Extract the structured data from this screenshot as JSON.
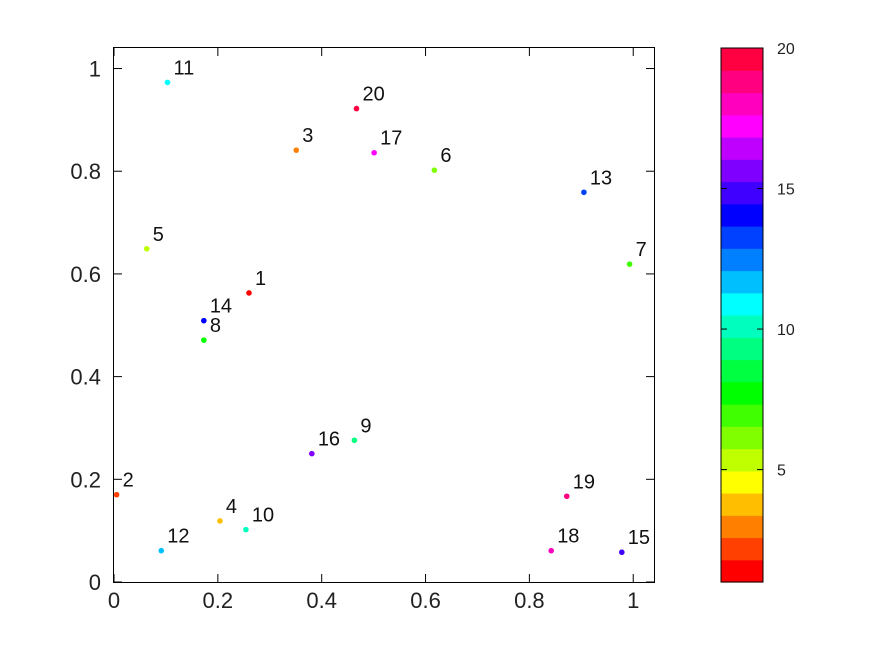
{
  "chart_data": {
    "type": "scatter",
    "title": "",
    "xlabel": "",
    "ylabel": "",
    "xlim": [
      0,
      1.04
    ],
    "ylim": [
      0,
      1.04
    ],
    "x_ticks": [
      0,
      0.2,
      0.4,
      0.6,
      0.8,
      1
    ],
    "x_tick_labels": [
      "0",
      "0.2",
      "0.4",
      "0.6",
      "0.8",
      "1"
    ],
    "y_ticks": [
      0,
      0.2,
      0.4,
      0.6,
      0.8,
      1
    ],
    "y_tick_labels": [
      "0",
      "0.2",
      "0.4",
      "0.6",
      "0.8",
      "1"
    ],
    "grid": false,
    "legend": "none",
    "points": [
      {
        "label": "1",
        "x": 0.26,
        "y": 0.563,
        "c": 1
      },
      {
        "label": "2",
        "x": 0.005,
        "y": 0.17,
        "c": 2
      },
      {
        "label": "3",
        "x": 0.351,
        "y": 0.841,
        "c": 3
      },
      {
        "label": "4",
        "x": 0.204,
        "y": 0.119,
        "c": 4
      },
      {
        "label": "5",
        "x": 0.063,
        "y": 0.649,
        "c": 5
      },
      {
        "label": "6",
        "x": 0.617,
        "y": 0.802,
        "c": 6
      },
      {
        "label": "7",
        "x": 0.993,
        "y": 0.619,
        "c": 7
      },
      {
        "label": "8",
        "x": 0.173,
        "y": 0.471,
        "c": 8
      },
      {
        "label": "9",
        "x": 0.463,
        "y": 0.276,
        "c": 9
      },
      {
        "label": "10",
        "x": 0.254,
        "y": 0.102,
        "c": 10
      },
      {
        "label": "11",
        "x": 0.103,
        "y": 0.973,
        "c": 11
      },
      {
        "label": "12",
        "x": 0.091,
        "y": 0.061,
        "c": 12
      },
      {
        "label": "13",
        "x": 0.905,
        "y": 0.759,
        "c": 13
      },
      {
        "label": "14",
        "x": 0.173,
        "y": 0.509,
        "c": 14
      },
      {
        "label": "15",
        "x": 0.978,
        "y": 0.058,
        "c": 15
      },
      {
        "label": "16",
        "x": 0.381,
        "y": 0.25,
        "c": 16
      },
      {
        "label": "17",
        "x": 0.501,
        "y": 0.836,
        "c": 17
      },
      {
        "label": "18",
        "x": 0.842,
        "y": 0.061,
        "c": 18
      },
      {
        "label": "19",
        "x": 0.872,
        "y": 0.167,
        "c": 19
      },
      {
        "label": "20",
        "x": 0.467,
        "y": 0.922,
        "c": 20
      }
    ],
    "colorbar": {
      "min": 1,
      "max": 20,
      "ticks": [
        5,
        10,
        15,
        20
      ],
      "tick_labels": [
        "5",
        "10",
        "15",
        "20"
      ],
      "colors": [
        "#ff0000",
        "#ff4000",
        "#ff8000",
        "#ffbf00",
        "#ffff00",
        "#bfff00",
        "#80ff00",
        "#40ff00",
        "#00ff00",
        "#00ff40",
        "#00ff80",
        "#00ffbf",
        "#00ffff",
        "#00bfff",
        "#0080ff",
        "#0040ff",
        "#0000ff",
        "#4000ff",
        "#8000ff",
        "#bf00ff",
        "#ff00ff",
        "#ff00bf",
        "#ff0080",
        "#ff0040"
      ]
    }
  }
}
